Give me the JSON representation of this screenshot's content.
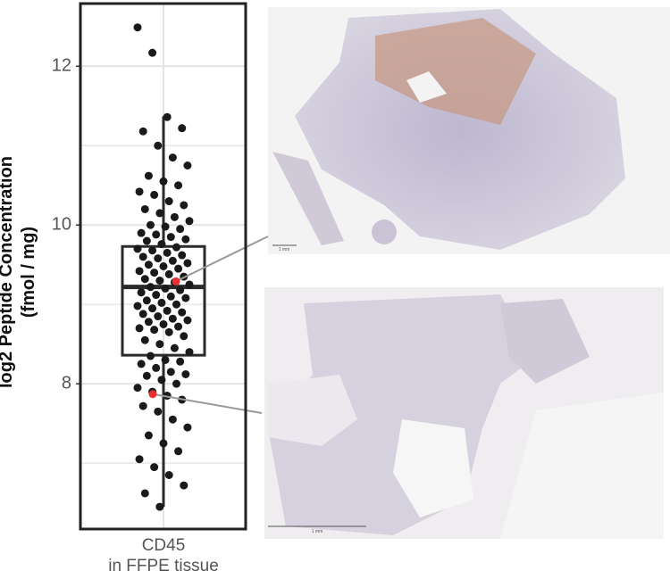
{
  "chart_data": {
    "type": "box-strip",
    "ylabel": "log2 Peptide Concentration\n(fmol / mg)",
    "categories": [
      "CD45\nin FFPE tissue"
    ],
    "ylim": [
      6.17,
      12.79
    ],
    "yticks": [
      8,
      10,
      12
    ],
    "yticks_minor": [
      7,
      9,
      11
    ],
    "grid": true,
    "box": {
      "color": "#2b2b2b",
      "q1": 8.36,
      "median": 9.22,
      "q3": 9.73,
      "whisker_low": 6.45,
      "whisker_high": 11.37
    },
    "series": [
      {
        "color": "#1a1a1a",
        "values": [
          12.49,
          12.17,
          11.36,
          11.22,
          11.18,
          11.0,
          10.85,
          10.75,
          10.62,
          10.55,
          10.5,
          10.42,
          10.38,
          10.3,
          10.25,
          10.2,
          10.15,
          10.1,
          10.05,
          10.0,
          9.98,
          9.95,
          9.9,
          9.88,
          9.85,
          9.82,
          9.8,
          9.76,
          9.72,
          9.7,
          9.68,
          9.65,
          9.62,
          9.6,
          9.58,
          9.55,
          9.52,
          9.5,
          9.48,
          9.45,
          9.42,
          9.4,
          9.38,
          9.35,
          9.32,
          9.3,
          9.28,
          9.25,
          9.22,
          9.2,
          9.18,
          9.15,
          9.12,
          9.1,
          9.08,
          9.05,
          9.02,
          9.0,
          8.98,
          8.95,
          8.92,
          8.9,
          8.88,
          8.85,
          8.82,
          8.8,
          8.78,
          8.75,
          8.72,
          8.7,
          8.68,
          8.65,
          8.6,
          8.55,
          8.5,
          8.45,
          8.4,
          8.35,
          8.3,
          8.28,
          8.25,
          8.2,
          8.15,
          8.12,
          8.1,
          8.05,
          8.0,
          7.95,
          7.9,
          7.85,
          7.8,
          7.72,
          7.65,
          7.55,
          7.45,
          7.35,
          7.25,
          7.15,
          7.05,
          6.95,
          6.85,
          6.72,
          6.62,
          6.45
        ]
      },
      {
        "color": "#e8312f",
        "values": [
          9.29,
          7.87
        ]
      }
    ]
  },
  "images": [
    {
      "scale_label": "1 mm"
    },
    {
      "scale_label": "1 mm"
    }
  ]
}
